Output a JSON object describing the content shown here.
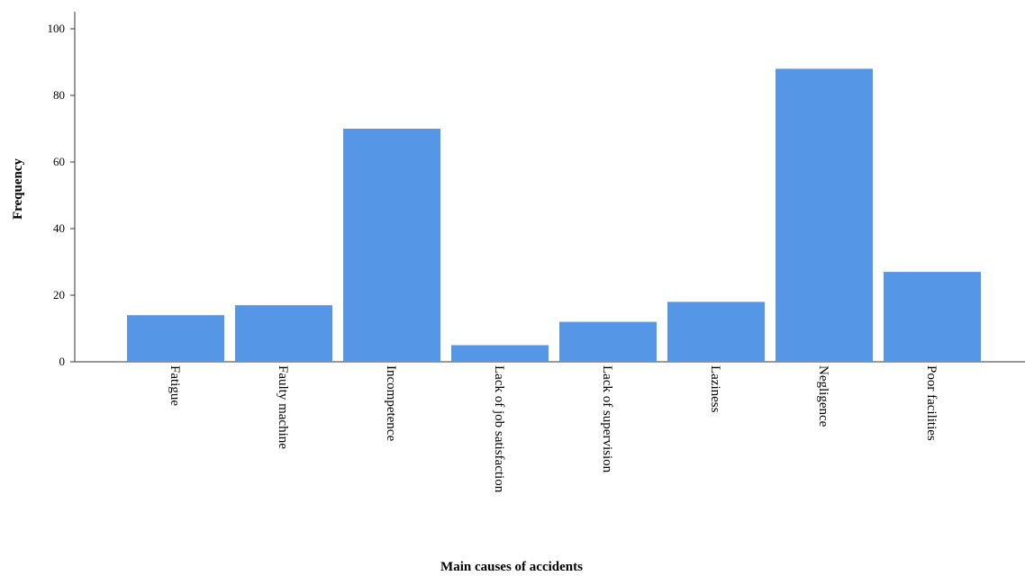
{
  "chart_data": {
    "type": "bar",
    "title": "",
    "xlabel": "Main causes of accidents",
    "ylabel": "Frequency",
    "categories": [
      "Fatigue",
      "Faulty machine",
      "Incompetence",
      "Lack of job satisfaction",
      "Lack of supervision",
      "Laziness",
      "Negligence",
      "Poor facilities"
    ],
    "values": [
      14,
      17,
      70,
      5,
      12,
      18,
      88,
      27
    ],
    "ylim": [
      0,
      100
    ],
    "yticks": [
      0,
      20,
      40,
      60,
      80,
      100
    ],
    "grid": false,
    "legend": "none",
    "bar_color": "#5596e6"
  }
}
